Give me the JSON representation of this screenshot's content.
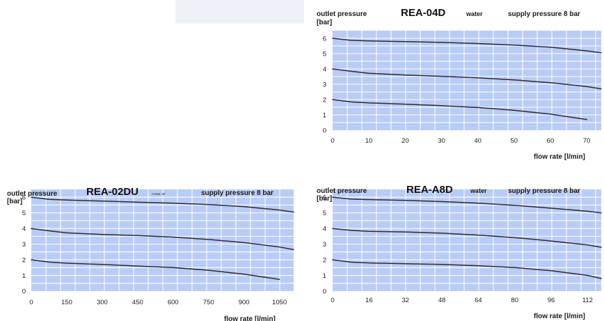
{
  "chart_data": [
    {
      "id": "rea04d",
      "type": "line",
      "title": "REA-04D",
      "medium": "water",
      "supply_label": "supply pressure 8 bar",
      "ylabel": [
        "outlet pressure",
        "[bar]"
      ],
      "xlabel": "flow rate [l/min]",
      "ylim": [
        0,
        6.5
      ],
      "xlim": [
        0,
        74
      ],
      "x_ticks": [
        0,
        10,
        20,
        30,
        40,
        50,
        60,
        70
      ],
      "y_ticks": [
        0,
        1,
        2,
        3,
        4,
        5,
        6
      ],
      "grid": true,
      "series": [
        {
          "x": [
            0,
            5,
            10,
            20,
            30,
            40,
            50,
            60,
            70,
            74
          ],
          "y": [
            6.0,
            5.87,
            5.83,
            5.78,
            5.73,
            5.66,
            5.56,
            5.42,
            5.18,
            5.05
          ]
        },
        {
          "x": [
            0,
            5,
            10,
            20,
            30,
            40,
            50,
            60,
            70,
            74
          ],
          "y": [
            4.0,
            3.85,
            3.72,
            3.6,
            3.52,
            3.42,
            3.28,
            3.1,
            2.85,
            2.7
          ]
        },
        {
          "x": [
            0,
            5,
            10,
            20,
            30,
            40,
            50,
            60,
            70
          ],
          "y": [
            2.0,
            1.85,
            1.78,
            1.7,
            1.6,
            1.48,
            1.3,
            1.05,
            0.7
          ]
        }
      ]
    },
    {
      "id": "rea02du",
      "type": "line",
      "title": "REA-02DU",
      "medium": "compr. air",
      "supply_label": "supply pressure  8 bar",
      "ylabel": [
        "outlet pressure",
        "[bar]"
      ],
      "xlabel": "flow rate [l/min]",
      "ylim": [
        0,
        6.5
      ],
      "xlim": [
        0,
        1110
      ],
      "x_ticks": [
        0,
        150,
        300,
        450,
        600,
        750,
        900,
        1050
      ],
      "y_ticks": [
        0,
        1,
        2,
        3,
        4,
        5,
        6
      ],
      "grid": true,
      "series": [
        {
          "x": [
            0,
            75,
            150,
            300,
            450,
            600,
            750,
            900,
            1050,
            1110
          ],
          "y": [
            6.0,
            5.87,
            5.82,
            5.75,
            5.68,
            5.62,
            5.53,
            5.4,
            5.18,
            5.05
          ]
        },
        {
          "x": [
            0,
            75,
            150,
            300,
            450,
            600,
            750,
            900,
            1050,
            1110
          ],
          "y": [
            4.0,
            3.85,
            3.72,
            3.62,
            3.55,
            3.45,
            3.3,
            3.1,
            2.82,
            2.65
          ]
        },
        {
          "x": [
            0,
            75,
            150,
            300,
            450,
            600,
            750,
            900,
            1050
          ],
          "y": [
            2.0,
            1.85,
            1.78,
            1.7,
            1.6,
            1.5,
            1.33,
            1.08,
            0.75
          ]
        }
      ]
    },
    {
      "id": "reaa8d",
      "type": "line",
      "title": "REA-A8D",
      "medium": "water",
      "supply_label": "supply pressure 8 bar",
      "ylabel": [
        "outlet pressure",
        "[bar]"
      ],
      "xlabel": "flow rate [l/min]",
      "ylim": [
        0,
        6.5
      ],
      "xlim": [
        0,
        118
      ],
      "x_ticks": [
        0,
        16,
        32,
        48,
        64,
        80,
        96,
        112
      ],
      "y_ticks": [
        0,
        1,
        2,
        3,
        4,
        5,
        6
      ],
      "grid": true,
      "series": [
        {
          "x": [
            0,
            8,
            16,
            32,
            48,
            64,
            80,
            96,
            112,
            118
          ],
          "y": [
            6.0,
            5.88,
            5.85,
            5.8,
            5.72,
            5.62,
            5.48,
            5.3,
            5.1,
            5.0
          ]
        },
        {
          "x": [
            0,
            8,
            16,
            32,
            48,
            64,
            80,
            96,
            112,
            118
          ],
          "y": [
            4.0,
            3.88,
            3.82,
            3.78,
            3.7,
            3.58,
            3.42,
            3.2,
            2.95,
            2.8
          ]
        },
        {
          "x": [
            0,
            8,
            16,
            32,
            48,
            64,
            80,
            96,
            112,
            118
          ],
          "y": [
            2.0,
            1.85,
            1.8,
            1.75,
            1.7,
            1.62,
            1.5,
            1.3,
            1.0,
            0.8
          ]
        }
      ]
    }
  ],
  "colors": {
    "plot_bg": "#b8ccf5",
    "grid": "#ffffff",
    "line": "#2a2a36",
    "top_box": "#eef1f7"
  }
}
